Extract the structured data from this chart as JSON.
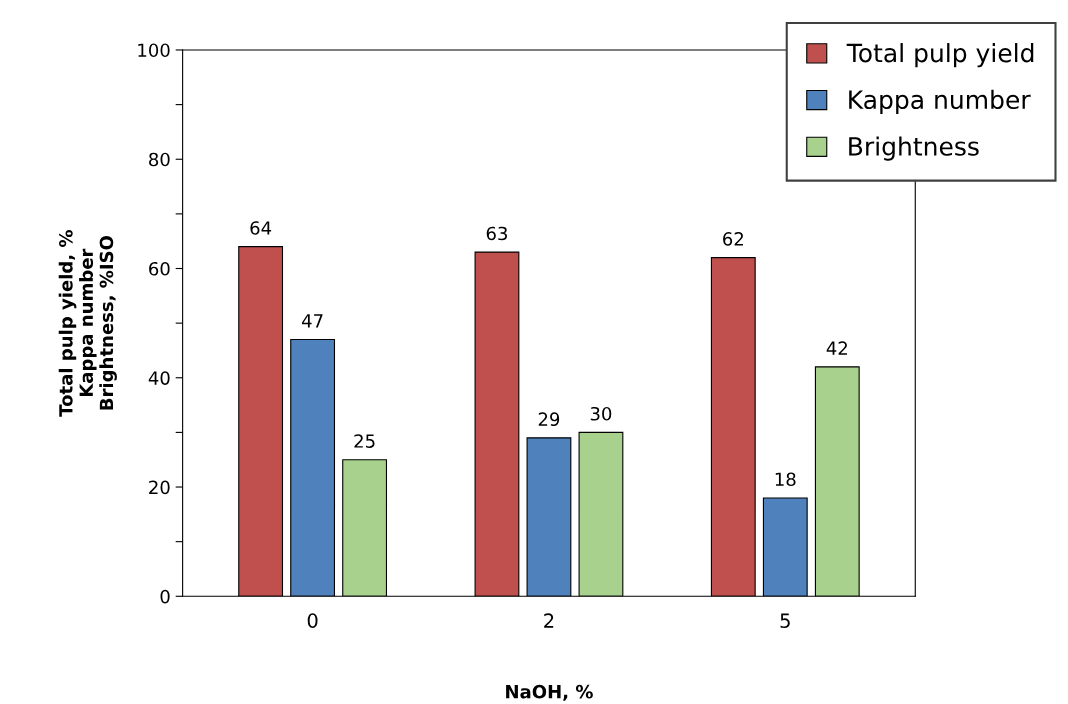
{
  "chart_data": {
    "type": "bar",
    "xlabel": "NaOH, %",
    "ylabel": "Total pulp yield, %\nKappa number\nBrightness, %ISO",
    "categories": [
      "0",
      "2",
      "5"
    ],
    "series": [
      {
        "name": "Total pulp yield",
        "color": "#c0504d",
        "values": [
          64,
          63,
          62
        ]
      },
      {
        "name": "Kappa number",
        "color": "#4f81bd",
        "values": [
          47,
          29,
          18
        ]
      },
      {
        "name": "Brightness",
        "color": "#a9d18e",
        "values": [
          25,
          30,
          42
        ]
      }
    ],
    "ylim": [
      0,
      100
    ],
    "yticks": [
      0,
      {
        "value": 10,
        "label": null
      },
      20,
      {
        "value": 30,
        "label": null
      },
      40,
      {
        "value": 50,
        "label": null
      },
      60,
      {
        "value": 70,
        "label": null
      },
      80,
      {
        "value": 90,
        "label": null
      },
      100
    ],
    "data_labels": true,
    "legend": "top right",
    "grid": false
  }
}
